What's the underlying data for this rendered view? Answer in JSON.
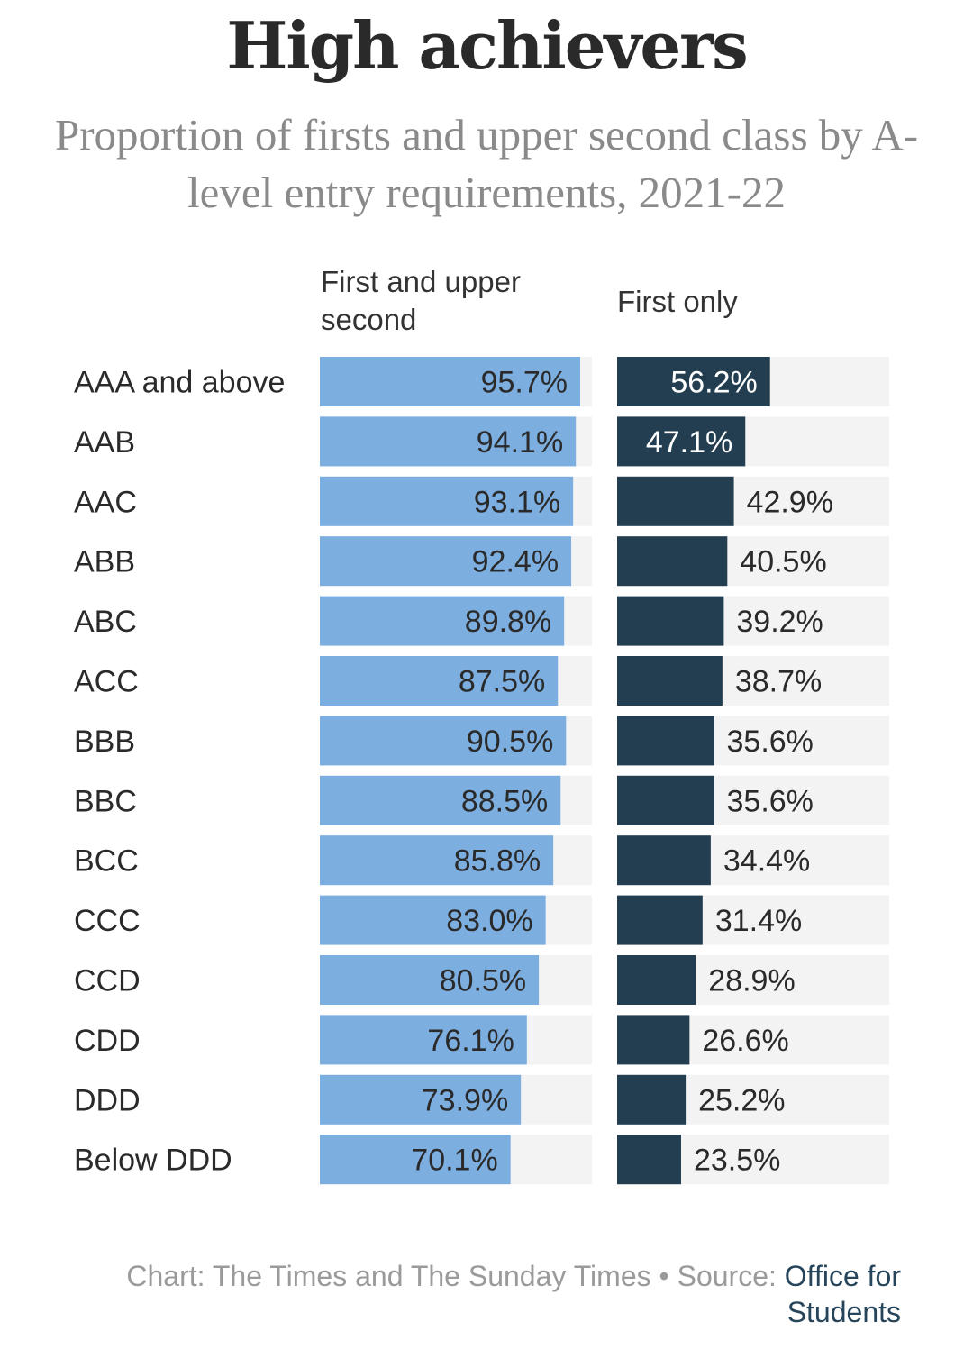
{
  "title": "High achievers",
  "subtitle": "Proportion of firsts and upper second class by A-level entry requirements, 2021-22",
  "footer": {
    "chart_credit": "Chart: The Times and The Sunday Times",
    "separator": "•",
    "source_label": "Source:",
    "source_name": "Office for Students"
  },
  "colors": {
    "first_and_upper": "#7daee0",
    "first_only": "#233e50",
    "track": "#f3f3f3",
    "label_dark": "#2a2a2a",
    "label_light": "#ffffff"
  },
  "chart_data": {
    "type": "bar",
    "orientation": "horizontal",
    "categories": [
      "AAA and above",
      "AAB",
      "AAC",
      "ABB",
      "ABC",
      "ACC",
      "BBB",
      "BBC",
      "BCC",
      "CCC",
      "CCD",
      "CDD",
      "DDD",
      "Below DDD"
    ],
    "series": [
      {
        "name": "First and upper second",
        "values": [
          95.7,
          94.1,
          93.1,
          92.4,
          89.8,
          87.5,
          90.5,
          88.5,
          85.8,
          83.0,
          80.5,
          76.1,
          73.9,
          70.1
        ],
        "labels": [
          "95.7%",
          "94.1%",
          "93.1%",
          "92.4%",
          "89.8%",
          "87.5%",
          "90.5%",
          "88.5%",
          "85.8%",
          "83.0%",
          "80.5%",
          "76.1%",
          "73.9%",
          "70.1%"
        ]
      },
      {
        "name": "First only",
        "values": [
          56.2,
          47.1,
          42.9,
          40.5,
          39.2,
          38.7,
          35.6,
          35.6,
          34.4,
          31.4,
          28.9,
          26.6,
          25.2,
          23.5
        ],
        "labels": [
          "56.2%",
          "47.1%",
          "42.9%",
          "40.5%",
          "39.2%",
          "38.7%",
          "35.6%",
          "35.6%",
          "34.4%",
          "31.4%",
          "28.9%",
          "26.6%",
          "25.2%",
          "23.5%"
        ]
      }
    ],
    "xlim": [
      0,
      100
    ],
    "grid": false,
    "legend": "column headers"
  }
}
